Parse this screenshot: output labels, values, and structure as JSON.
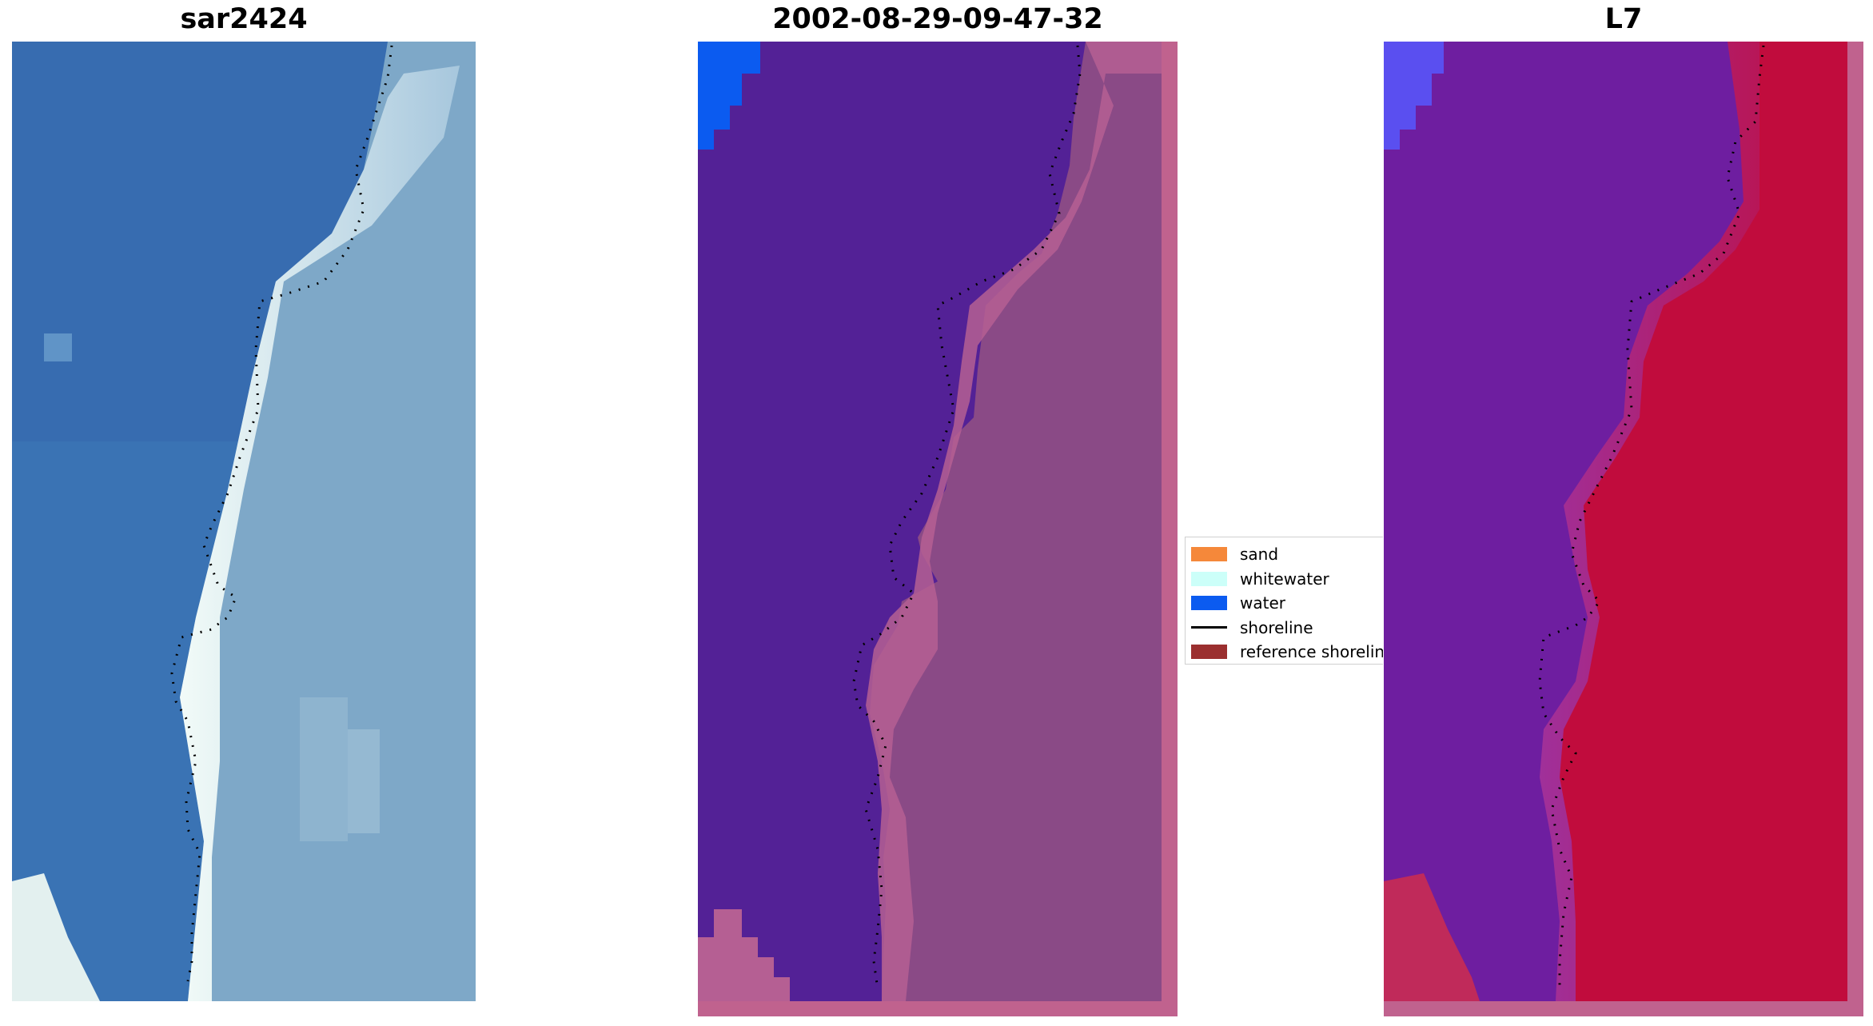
{
  "panels": [
    {
      "title": "sar2424"
    },
    {
      "title": "2002-08-29-09-47-32"
    },
    {
      "title": "L7"
    }
  ],
  "legend": {
    "items": [
      {
        "label": "sand",
        "kind": "patch",
        "color": "#f5883a"
      },
      {
        "label": "whitewater",
        "kind": "patch",
        "color": "#ccfff9"
      },
      {
        "label": "water",
        "kind": "patch",
        "color": "#0b5bf0"
      },
      {
        "label": "shoreline",
        "kind": "line",
        "color": "#000000"
      },
      {
        "label": "reference shoreline",
        "kind": "patch",
        "color": "#9b2f2f"
      }
    ]
  },
  "colors": {
    "rgb_water": "#3a73b4",
    "rgb_whitewater": "#e9f4f2",
    "rgb_land": "#7ea8c8",
    "classified_background": "#532196",
    "classified_land": "#8a4a86",
    "classified_border": "#c0628e",
    "classified_water": "#0b5bf0",
    "mndwi_water": "#6e1ea0",
    "mndwi_land": "#c10c3d",
    "shoreline_dots": "#000000"
  }
}
